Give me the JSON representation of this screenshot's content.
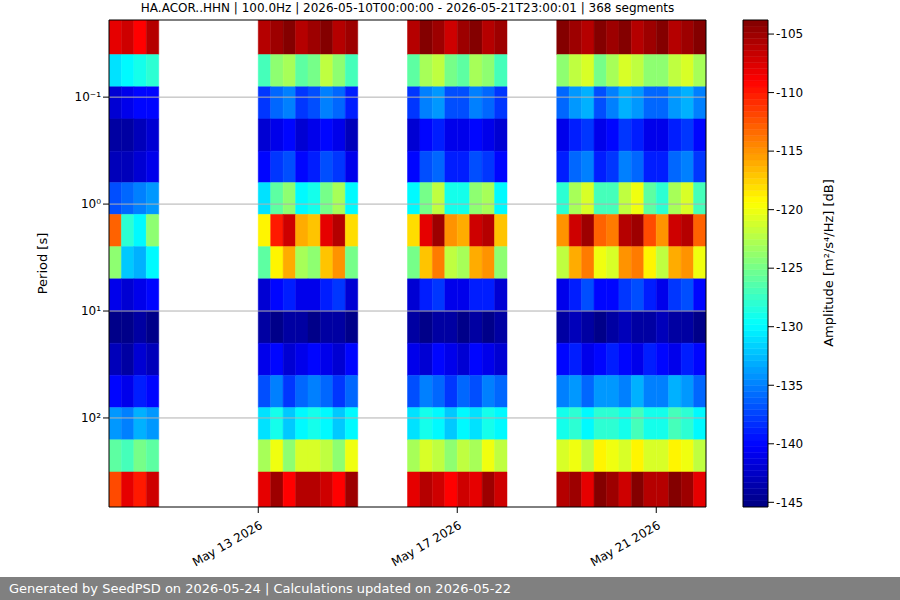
{
  "chart_data": {
    "type": "heatmap",
    "title": "HA.ACOR..HHN | 100.0Hz | 2026-05-10T00:00:00 - 2026-05-21T23:00:01 | 368 segments",
    "y_label": "Period [s]",
    "footer": "Generated by SeedPSD on 2026-05-24 | Calculations updated on 2026-05-22",
    "log": "y",
    "grid": true,
    "xlim": [
      "2026-05-10T00:00",
      "2026-05-22T00:00"
    ],
    "xticks": [
      {
        "value": "2026-05-13T00:00",
        "label": "May 13 2026"
      },
      {
        "value": "2026-05-17T00:00",
        "label": "May 17 2026"
      },
      {
        "value": "2026-05-21T00:00",
        "label": "May 21 2026"
      }
    ],
    "ylim": [
      0.019,
      680
    ],
    "yticks": [
      {
        "value": 0.1,
        "label": "10⁻¹"
      },
      {
        "value": 1,
        "label": "10⁰"
      },
      {
        "value": 10,
        "label": "10¹"
      },
      {
        "value": 100,
        "label": "10²"
      }
    ],
    "colorbar": {
      "label": "Amplitude [m²/s⁴/Hz] [dB]",
      "range": [
        -145.4,
        -103.8
      ],
      "ticks": [
        -105,
        -110,
        -115,
        -120,
        -125,
        -130,
        -135,
        -140,
        -145
      ]
    },
    "cells": {
      "x_edges": [
        "2026-05-10T00:00",
        "2026-05-10T06:00",
        "2026-05-10T12:00",
        "2026-05-10T18:00",
        "2026-05-11T00:00",
        "2026-05-11T06:00",
        "2026-05-11T12:00",
        "2026-05-11T18:00",
        "2026-05-12T00:00",
        "2026-05-12T06:00",
        "2026-05-12T12:00",
        "2026-05-12T18:00",
        "2026-05-13T00:00",
        "2026-05-13T06:00",
        "2026-05-13T12:00",
        "2026-05-13T18:00",
        "2026-05-14T00:00",
        "2026-05-14T06:00",
        "2026-05-14T12:00",
        "2026-05-14T18:00",
        "2026-05-15T00:00",
        "2026-05-15T06:00",
        "2026-05-15T12:00",
        "2026-05-15T18:00",
        "2026-05-16T00:00",
        "2026-05-16T06:00",
        "2026-05-16T12:00",
        "2026-05-16T18:00",
        "2026-05-17T00:00",
        "2026-05-17T06:00",
        "2026-05-17T12:00",
        "2026-05-17T18:00",
        "2026-05-18T00:00",
        "2026-05-18T06:00",
        "2026-05-18T12:00",
        "2026-05-18T18:00",
        "2026-05-19T00:00",
        "2026-05-19T06:00",
        "2026-05-19T12:00",
        "2026-05-19T18:00",
        "2026-05-20T00:00",
        "2026-05-20T06:00",
        "2026-05-20T12:00",
        "2026-05-20T18:00",
        "2026-05-21T00:00",
        "2026-05-21T06:00",
        "2026-05-21T12:00",
        "2026-05-21T18:00",
        "2026-05-22T00:00"
      ],
      "period_edges": [
        0.019,
        0.04,
        0.08,
        0.16,
        0.32,
        0.63,
        1.25,
        2.5,
        5,
        10,
        20,
        40,
        80,
        160,
        320,
        680
      ],
      "values": [
        [
          -108,
          -107,
          -109,
          -106,
          null,
          null,
          null,
          null,
          null,
          null,
          null,
          null,
          -106,
          -105,
          -104,
          -106,
          -105,
          -104,
          -106,
          -105,
          null,
          null,
          null,
          null,
          -106,
          -104,
          -105,
          -107,
          -105,
          -104,
          -106,
          -105,
          null,
          null,
          null,
          null,
          -104,
          -105,
          -106,
          -104,
          -105,
          -104,
          -106,
          -105,
          -104,
          -106,
          -105,
          -104
        ],
        [
          -131,
          -130,
          -129,
          -128,
          null,
          null,
          null,
          null,
          null,
          null,
          null,
          null,
          -127,
          -124,
          -123,
          -126,
          -125,
          -122,
          -124,
          -127,
          null,
          null,
          null,
          null,
          -126,
          -123,
          -122,
          -125,
          -126,
          -123,
          -124,
          -127,
          null,
          null,
          null,
          null,
          -124,
          -122,
          -121,
          -125,
          -123,
          -121,
          -122,
          -124,
          -124,
          -122,
          -121,
          -123
        ],
        [
          -142,
          -141,
          -140,
          -140,
          null,
          null,
          null,
          null,
          null,
          null,
          null,
          null,
          -138,
          -136,
          -135,
          -138,
          -137,
          -135,
          -136,
          -139,
          null,
          null,
          null,
          null,
          -138,
          -135,
          -134,
          -137,
          -137,
          -135,
          -136,
          -138,
          null,
          null,
          null,
          null,
          -136,
          -134,
          -133,
          -137,
          -135,
          -133,
          -134,
          -136,
          -136,
          -134,
          -133,
          -135
        ],
        [
          -144,
          -144,
          -143,
          -142,
          null,
          null,
          null,
          null,
          null,
          null,
          null,
          null,
          -142,
          -141,
          -140,
          -142,
          -141,
          -140,
          -141,
          -143,
          null,
          null,
          null,
          null,
          -142,
          -140,
          -139,
          -141,
          -141,
          -140,
          -141,
          -142,
          null,
          null,
          null,
          null,
          -141,
          -139,
          -138,
          -141,
          -140,
          -138,
          -139,
          -141,
          -141,
          -139,
          -138,
          -140
        ],
        [
          -143,
          -143,
          -142,
          -141,
          null,
          null,
          null,
          null,
          null,
          null,
          null,
          null,
          -140,
          -138,
          -137,
          -140,
          -139,
          -137,
          -138,
          -141,
          null,
          null,
          null,
          null,
          -140,
          -137,
          -136,
          -139,
          -139,
          -137,
          -138,
          -140,
          null,
          null,
          null,
          null,
          -139,
          -136,
          -135,
          -139,
          -138,
          -135,
          -136,
          -139,
          -139,
          -136,
          -135,
          -138
        ],
        [
          -137,
          -136,
          -135,
          -134,
          null,
          null,
          null,
          null,
          null,
          null,
          null,
          null,
          -131,
          -126,
          -124,
          -130,
          -129,
          -125,
          -123,
          -130,
          null,
          null,
          null,
          null,
          -130,
          -125,
          -122,
          -129,
          -129,
          -124,
          -123,
          -130,
          null,
          null,
          null,
          null,
          -128,
          -123,
          -121,
          -127,
          -127,
          -122,
          -120,
          -126,
          -128,
          -123,
          -121,
          -127
        ],
        [
          -113,
          -128,
          -130,
          -124,
          null,
          null,
          null,
          null,
          null,
          null,
          null,
          null,
          -119,
          -110,
          -107,
          -116,
          -117,
          -108,
          -106,
          -118,
          null,
          null,
          null,
          null,
          -118,
          -108,
          -105,
          -115,
          -116,
          -107,
          -106,
          -117,
          null,
          null,
          null,
          null,
          -115,
          -107,
          -105,
          -113,
          -114,
          -106,
          -105,
          -112,
          -115,
          -107,
          -106,
          -113
        ],
        [
          -124,
          -132,
          -133,
          -130,
          null,
          null,
          null,
          null,
          null,
          null,
          null,
          null,
          -126,
          -119,
          -116,
          -123,
          -124,
          -117,
          -115,
          -125,
          null,
          null,
          null,
          null,
          -125,
          -117,
          -114,
          -122,
          -123,
          -116,
          -115,
          -124,
          null,
          null,
          null,
          null,
          -122,
          -116,
          -114,
          -120,
          -121,
          -115,
          -114,
          -119,
          -122,
          -116,
          -115,
          -120
        ],
        [
          -141,
          -142,
          -141,
          -140,
          null,
          null,
          null,
          null,
          null,
          null,
          null,
          null,
          -142,
          -140,
          -139,
          -141,
          -141,
          -139,
          -138,
          -142,
          null,
          null,
          null,
          null,
          -142,
          -139,
          -138,
          -141,
          -141,
          -139,
          -139,
          -142,
          null,
          null,
          null,
          null,
          -141,
          -139,
          -137,
          -140,
          -140,
          -138,
          -137,
          -139,
          -141,
          -138,
          -137,
          -140
        ],
        [
          -145,
          -145,
          -144,
          -145,
          null,
          null,
          null,
          null,
          null,
          null,
          null,
          null,
          -144,
          -145,
          -144,
          -144,
          -145,
          -144,
          -144,
          -145,
          null,
          null,
          null,
          null,
          -144,
          -145,
          -144,
          -144,
          -145,
          -144,
          -145,
          -144,
          null,
          null,
          null,
          null,
          -144,
          -143,
          -144,
          -145,
          -144,
          -143,
          -144,
          -144,
          -143,
          -144,
          -144,
          -145
        ],
        [
          -143,
          -144,
          -142,
          -143,
          null,
          null,
          null,
          null,
          null,
          null,
          null,
          null,
          -141,
          -140,
          -142,
          -141,
          -140,
          -141,
          -142,
          -140,
          null,
          null,
          null,
          null,
          -141,
          -142,
          -140,
          -141,
          -142,
          -140,
          -141,
          -142,
          null,
          null,
          null,
          null,
          -140,
          -139,
          -141,
          -140,
          -139,
          -140,
          -141,
          -139,
          -140,
          -141,
          -139,
          -140
        ],
        [
          -140,
          -141,
          -139,
          -140,
          null,
          null,
          null,
          null,
          null,
          null,
          null,
          null,
          -137,
          -135,
          -138,
          -136,
          -135,
          -136,
          -138,
          -136,
          null,
          null,
          null,
          null,
          -137,
          -135,
          -136,
          -138,
          -136,
          -137,
          -135,
          -136,
          null,
          null,
          null,
          null,
          -135,
          -134,
          -136,
          -134,
          -134,
          -135,
          -133,
          -135,
          -135,
          -133,
          -134,
          -136
        ],
        [
          -134,
          -135,
          -133,
          -134,
          null,
          null,
          null,
          null,
          null,
          null,
          null,
          null,
          -131,
          -129,
          -132,
          -130,
          -129,
          -130,
          -132,
          -130,
          null,
          null,
          null,
          null,
          -131,
          -129,
          -130,
          -132,
          -130,
          -131,
          -129,
          -130,
          null,
          null,
          null,
          null,
          -129,
          -128,
          -130,
          -128,
          -128,
          -129,
          -127,
          -129,
          -129,
          -127,
          -128,
          -130
        ],
        [
          -126,
          -127,
          -125,
          -126,
          null,
          null,
          null,
          null,
          null,
          null,
          null,
          null,
          -123,
          -120,
          -124,
          -121,
          -121,
          -122,
          -124,
          -120,
          null,
          null,
          null,
          null,
          -123,
          -121,
          -122,
          -124,
          -122,
          -123,
          -120,
          -122,
          null,
          null,
          null,
          null,
          -121,
          -120,
          -122,
          -119,
          -120,
          -121,
          -119,
          -121,
          -121,
          -119,
          -120,
          -122
        ],
        [
          -112,
          -108,
          -110,
          -107,
          null,
          null,
          null,
          null,
          null,
          null,
          null,
          null,
          -108,
          -105,
          -109,
          -106,
          -106,
          -107,
          -109,
          -105,
          null,
          null,
          null,
          null,
          -108,
          -106,
          -107,
          -109,
          -107,
          -108,
          -105,
          -107,
          null,
          null,
          null,
          null,
          -106,
          -105,
          -108,
          -104,
          -105,
          -107,
          -104,
          -106,
          -106,
          -104,
          -105,
          -108
        ]
      ]
    }
  }
}
